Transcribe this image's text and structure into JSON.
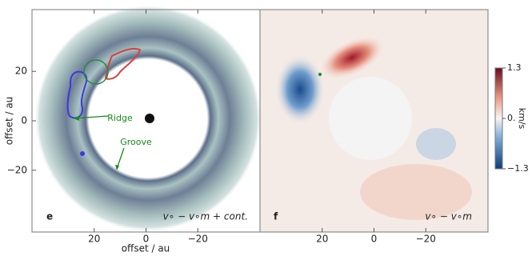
{
  "chart_data": [
    {
      "type": "image",
      "panel_label": "e",
      "caption": "v∘ − v∘m + cont.",
      "xlabel": "offset / au",
      "ylabel": "offset / au",
      "xlim": [
        44,
        -44
      ],
      "ylim": [
        -45,
        45
      ],
      "xticks": [
        {
          "value": 20,
          "label": "20"
        },
        {
          "value": 0,
          "label": "0"
        },
        {
          "value": -20,
          "label": "−20"
        }
      ],
      "yticks": [
        {
          "value": 20,
          "label": "20"
        },
        {
          "value": 0,
          "label": "0"
        },
        {
          "value": -20,
          "label": "−20"
        }
      ],
      "annotations": [
        "Ridge",
        "Groove"
      ]
    },
    {
      "type": "image",
      "panel_label": "f",
      "caption": "v∘ − v∘m",
      "xlim": [
        44,
        -44
      ],
      "ylim": [
        -45,
        45
      ],
      "xticks": [
        {
          "value": 20,
          "label": "20"
        },
        {
          "value": 0,
          "label": "0"
        },
        {
          "value": -20,
          "label": "−20"
        }
      ],
      "colorbar": {
        "label": "km/s",
        "lim": [
          -1.3,
          1.3
        ],
        "ticks": [
          {
            "value": 1.3,
            "label": "1.3"
          },
          {
            "value": 0,
            "label": "0."
          },
          {
            "value": -1.3,
            "label": "−1.3"
          }
        ]
      }
    }
  ]
}
